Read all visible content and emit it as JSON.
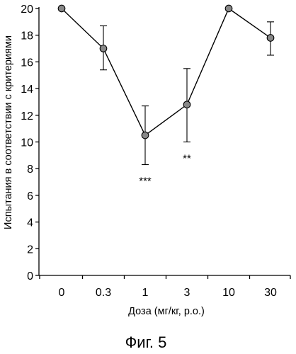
{
  "chart_data": {
    "type": "line",
    "xlabel": "Доза (мг/кг, p.o.)",
    "ylabel": "Испытания в соответствии с критериями",
    "caption": "Фиг. 5",
    "ylim": [
      0,
      20
    ],
    "yticks": [
      0,
      2,
      4,
      6,
      8,
      10,
      12,
      14,
      16,
      18,
      20
    ],
    "categories": [
      "0",
      "0.3",
      "1",
      "3",
      "10",
      "30"
    ],
    "series": [
      {
        "values": [
          20,
          17,
          10.5,
          12.8,
          20,
          17.8
        ],
        "error_low": [
          20,
          15.4,
          8.3,
          10.0,
          20,
          16.5
        ],
        "error_high": [
          20,
          18.7,
          12.7,
          15.5,
          20,
          19.0
        ],
        "marker_color": "#888888",
        "line_color": "#000000"
      }
    ],
    "annotations": [
      {
        "category": "1",
        "text": "***"
      },
      {
        "category": "3",
        "text": "**"
      }
    ],
    "grid": false
  }
}
